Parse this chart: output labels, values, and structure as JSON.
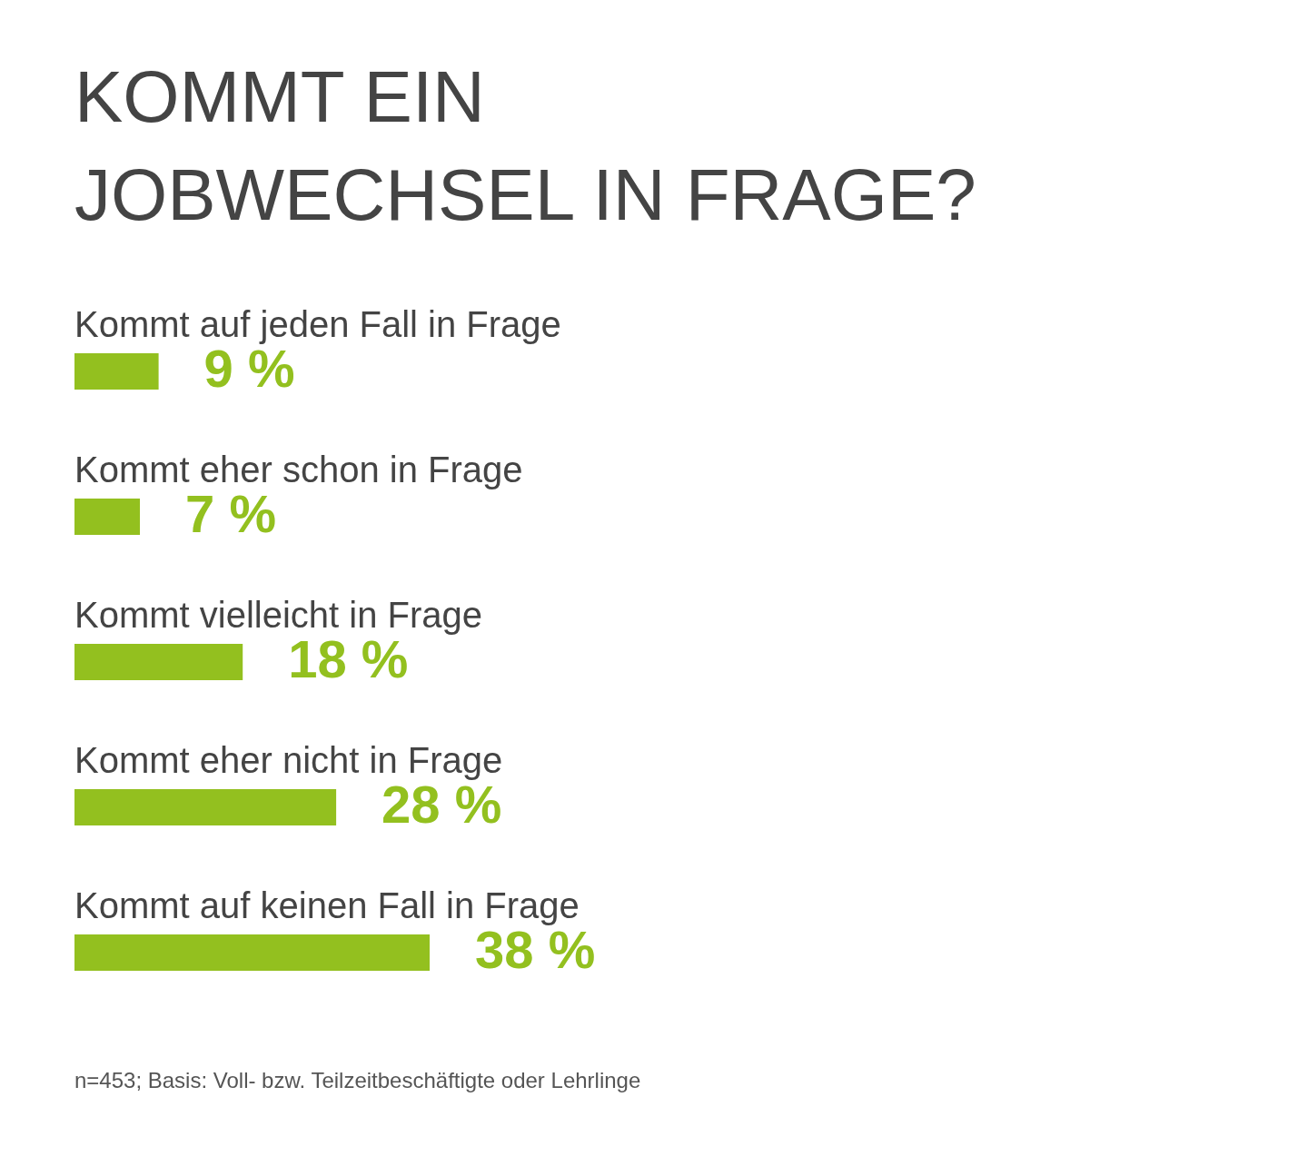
{
  "chart_data": {
    "type": "bar",
    "orientation": "horizontal",
    "title": "KOMMT EIN\nJOBWECHSEL IN FRAGE?",
    "categories": [
      "Kommt auf jeden Fall in Frage",
      "Kommt eher schon in Frage",
      "Kommt vielleicht in Frage",
      "Kommt eher nicht in Frage",
      "Kommt auf keinen Fall in Frage"
    ],
    "values": [
      9,
      7,
      18,
      28,
      38
    ],
    "value_labels": [
      "9 %",
      "7 %",
      "18 %",
      "28 %",
      "38 %"
    ],
    "color": "#93c01f",
    "annotations": [
      "n=453; Basis: Voll- bzw. Teilzeitbeschäftigte oder Lehrlinge"
    ]
  }
}
